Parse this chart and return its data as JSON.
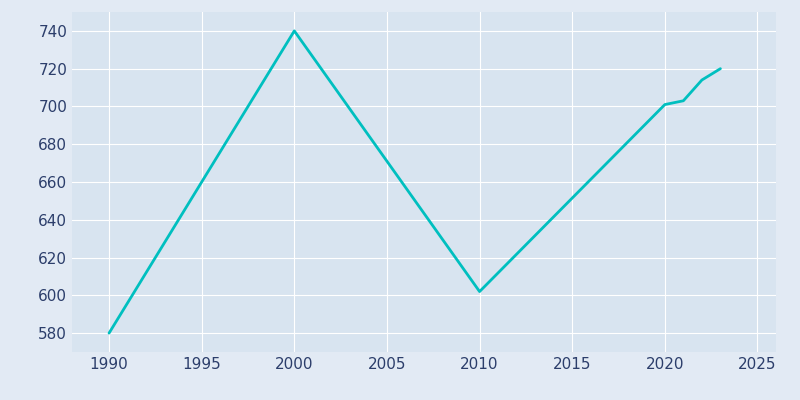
{
  "years": [
    1990,
    2000,
    2010,
    2020,
    2021,
    2022,
    2023
  ],
  "population": [
    580,
    740,
    602,
    701,
    703,
    714,
    720
  ],
  "line_color": "#00BFBF",
  "background_color": "#E2EAF4",
  "plot_bg_color": "#D8E4F0",
  "grid_color": "#FFFFFF",
  "text_color": "#2C3E6B",
  "xlim": [
    1988,
    2026
  ],
  "ylim": [
    570,
    750
  ],
  "xticks": [
    1990,
    1995,
    2000,
    2005,
    2010,
    2015,
    2020,
    2025
  ],
  "yticks": [
    580,
    600,
    620,
    640,
    660,
    680,
    700,
    720,
    740
  ],
  "linewidth": 2.0,
  "figsize": [
    8.0,
    4.0
  ],
  "dpi": 100
}
